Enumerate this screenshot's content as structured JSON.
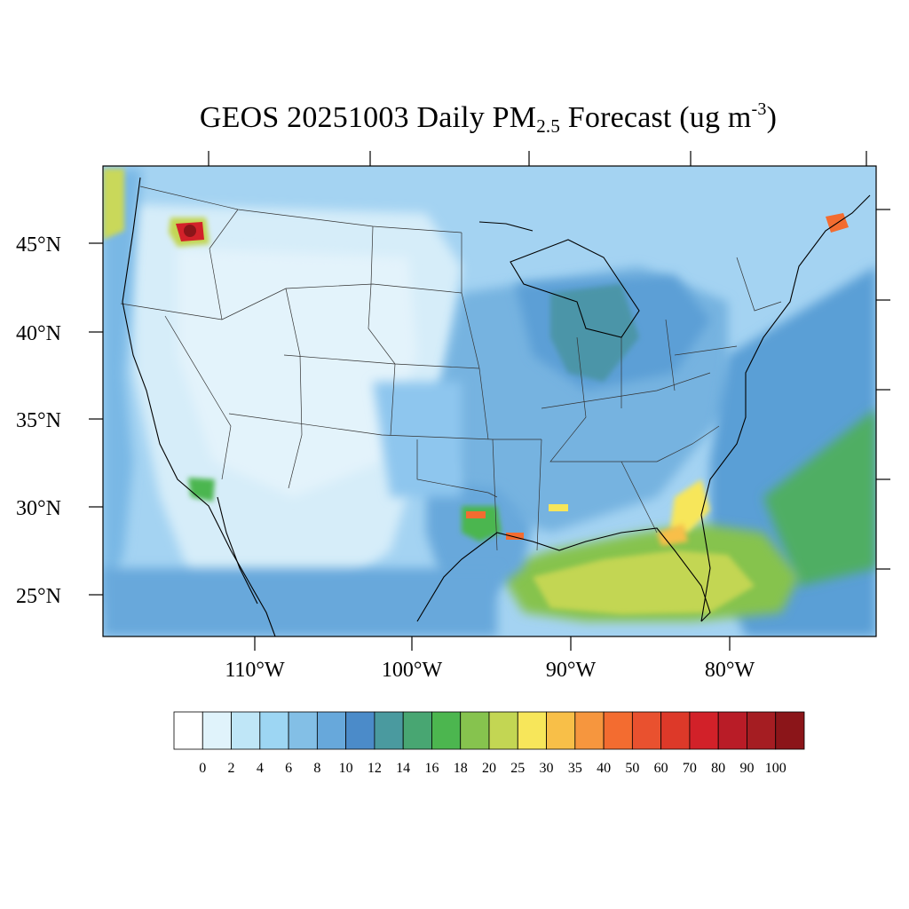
{
  "title": {
    "prefix": "GEOS 20251003 Daily PM",
    "sub": "2.5",
    "middle": " Forecast (ug m",
    "sup": "-3",
    "suffix": ")"
  },
  "lat_labels": [
    "45°N",
    "40°N",
    "35°N",
    "30°N",
    "25°N"
  ],
  "lon_labels": [
    "110°W",
    "100°W",
    "90°W",
    "80°W"
  ],
  "colorbar": {
    "levels": [
      "0",
      "2",
      "4",
      "6",
      "8",
      "10",
      "12",
      "14",
      "16",
      "18",
      "20",
      "25",
      "30",
      "35",
      "40",
      "50",
      "60",
      "70",
      "80",
      "90",
      "100"
    ],
    "colors": [
      "#ffffff",
      "#e0f3fb",
      "#bfe6f7",
      "#9dd6f3",
      "#83bfe6",
      "#67a8db",
      "#4b8bc9",
      "#4a9a9f",
      "#48a672",
      "#4cb64f",
      "#86c34e",
      "#c3d653",
      "#f7e65a",
      "#f8bf48",
      "#f6963e",
      "#f36c30",
      "#e9512f",
      "#dd3929",
      "#d22129",
      "#b91c27",
      "#a51d22",
      "#8b1519"
    ]
  },
  "map": {
    "background": "#a4d3f2",
    "states_line_color": "#333333"
  }
}
